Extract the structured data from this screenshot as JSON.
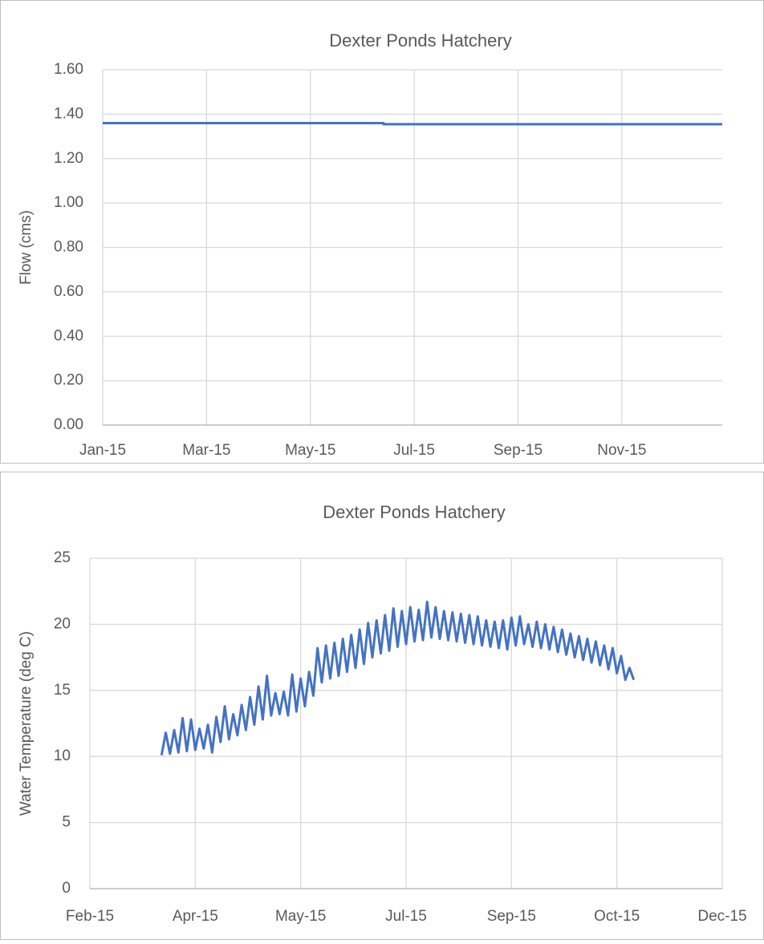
{
  "chart_data": [
    {
      "type": "line",
      "title": "Dexter Ponds Hatchery",
      "y_label": "Flow (cms)",
      "color": "#4472c4",
      "grid": true,
      "x": [
        42005,
        42170,
        42170,
        42369
      ],
      "values": [
        1.36,
        1.36,
        1.355,
        1.355
      ],
      "xlim": [
        42005,
        42369
      ],
      "xticks": [
        {
          "value": 42005,
          "label": "Jan-15"
        },
        {
          "value": 42066,
          "label": "Mar-15"
        },
        {
          "value": 42127,
          "label": "May-15"
        },
        {
          "value": 42188,
          "label": "Jul-15"
        },
        {
          "value": 42249,
          "label": "Sep-15"
        },
        {
          "value": 42310,
          "label": "Nov-15"
        }
      ],
      "ylim": [
        0,
        1.6
      ],
      "yticks": [
        {
          "value": 0,
          "label": "0.00"
        },
        {
          "value": 0.2,
          "label": "0.20"
        },
        {
          "value": 0.4,
          "label": "0.40"
        },
        {
          "value": 0.6,
          "label": "0.60"
        },
        {
          "value": 0.8,
          "label": "0.80"
        },
        {
          "value": 1,
          "label": "1.00"
        },
        {
          "value": 1.2,
          "label": "1.20"
        },
        {
          "value": 1.4,
          "label": "1.40"
        },
        {
          "value": 1.6,
          "label": "1.60"
        }
      ]
    },
    {
      "type": "line",
      "title": "Dexter Ponds Hatchery",
      "y_label": "Water Temperature (deg C)",
      "color": "#4472c4",
      "grid": true,
      "x": [
        42089,
        42091,
        42093,
        42095,
        42097,
        42099,
        42101,
        42103,
        42105,
        42107,
        42109,
        42111,
        42113,
        42115,
        42117,
        42119,
        42121,
        42123,
        42125,
        42127,
        42129,
        42131,
        42133,
        42135,
        42137,
        42139,
        42141,
        42143,
        42145,
        42147,
        42149,
        42151,
        42153,
        42155,
        42157,
        42159,
        42161,
        42163,
        42165,
        42167,
        42169,
        42171,
        42173,
        42175,
        42177,
        42179,
        42181,
        42183,
        42185,
        42187,
        42189,
        42191,
        42193,
        42195,
        42197,
        42199,
        42201,
        42203,
        42205,
        42207,
        42209,
        42211,
        42213,
        42215,
        42217,
        42219,
        42221,
        42223,
        42225,
        42227,
        42229,
        42231,
        42233,
        42235,
        42237,
        42239,
        42241,
        42243,
        42245,
        42247,
        42249,
        42251,
        42253,
        42255,
        42257,
        42259,
        42261,
        42263,
        42265,
        42267,
        42269,
        42271,
        42273,
        42275,
        42277,
        42279,
        42281,
        42283,
        42285,
        42287,
        42289,
        42291,
        42293,
        42295,
        42297,
        42299,
        42301,
        42303,
        42305,
        42307,
        42309,
        42311,
        42313
      ],
      "values": [
        10.1,
        11.8,
        10.2,
        12.0,
        10.3,
        12.9,
        10.4,
        12.8,
        10.5,
        12.1,
        10.6,
        12.4,
        10.3,
        13.0,
        11.1,
        13.8,
        11.3,
        13.2,
        11.6,
        13.9,
        12.0,
        14.5,
        12.4,
        15.3,
        12.8,
        16.1,
        13.1,
        14.8,
        13.2,
        14.9,
        13.1,
        16.2,
        13.4,
        15.9,
        13.8,
        16.4,
        14.6,
        18.2,
        15.6,
        18.4,
        15.9,
        18.6,
        16.1,
        18.9,
        16.4,
        19.2,
        16.7,
        19.6,
        17.0,
        20.1,
        17.5,
        20.3,
        17.8,
        20.7,
        18.0,
        21.2,
        18.3,
        21.0,
        18.5,
        21.3,
        18.7,
        21.1,
        18.8,
        21.7,
        19.0,
        21.3,
        18.9,
        21.0,
        18.8,
        20.9,
        18.7,
        20.8,
        18.6,
        20.7,
        18.5,
        20.6,
        18.4,
        20.3,
        18.3,
        20.2,
        18.2,
        20.3,
        18.1,
        20.5,
        18.4,
        20.6,
        18.5,
        20.0,
        18.3,
        20.2,
        18.2,
        20.0,
        18.1,
        19.8,
        17.9,
        19.6,
        17.7,
        19.3,
        17.5,
        19.1,
        17.3,
        18.9,
        17.1,
        18.7,
        16.9,
        18.4,
        16.6,
        18.2,
        16.3,
        17.6,
        15.8,
        16.7,
        15.8
      ],
      "xlim": [
        42055,
        42355
      ],
      "xticks": [
        {
          "value": 42055,
          "label": "Feb-15"
        },
        {
          "value": 42105,
          "label": "Apr-15"
        },
        {
          "value": 42155,
          "label": "May-15"
        },
        {
          "value": 42205,
          "label": "Jul-15"
        },
        {
          "value": 42255,
          "label": "Sep-15"
        },
        {
          "value": 42305,
          "label": "Oct-15"
        },
        {
          "value": 42355,
          "label": "Dec-15"
        }
      ],
      "ylim": [
        0,
        25
      ],
      "yticks": [
        0,
        5,
        10,
        15,
        20,
        25
      ]
    }
  ]
}
